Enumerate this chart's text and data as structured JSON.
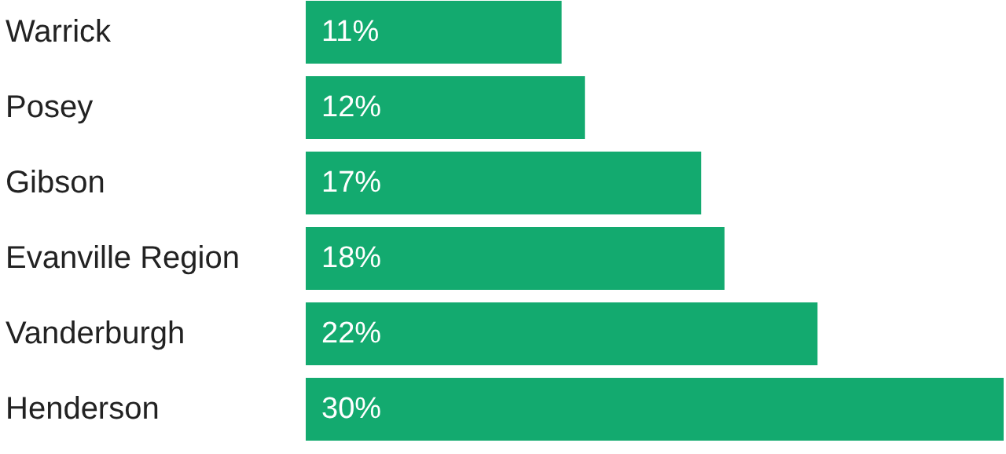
{
  "chart_data": {
    "type": "bar",
    "orientation": "horizontal",
    "categories": [
      "Warrick",
      "Posey",
      "Gibson",
      "Evanville Region",
      "Vanderburgh",
      "Henderson"
    ],
    "values": [
      11,
      12,
      17,
      18,
      22,
      30
    ],
    "value_labels": [
      "11%",
      "12%",
      "17%",
      "18%",
      "22%",
      "30%"
    ],
    "color": "#13aa6f"
  }
}
